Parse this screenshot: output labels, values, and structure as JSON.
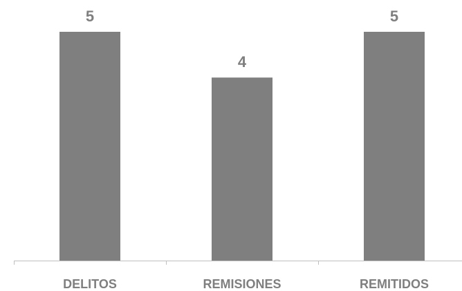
{
  "chart_data": {
    "type": "bar",
    "categories": [
      "DELITOS",
      "REMISIONES",
      "REMITIDOS"
    ],
    "values": [
      5,
      4,
      5
    ],
    "value_labels": [
      "5",
      "4",
      "5"
    ],
    "title": "",
    "xlabel": "",
    "ylabel": "",
    "ylim": [
      0,
      5
    ],
    "grid": false,
    "legend": "none",
    "bar_color": "#7f7f7f",
    "axis_color": "#bfbfbf",
    "label_color": "#7f7f7f"
  }
}
